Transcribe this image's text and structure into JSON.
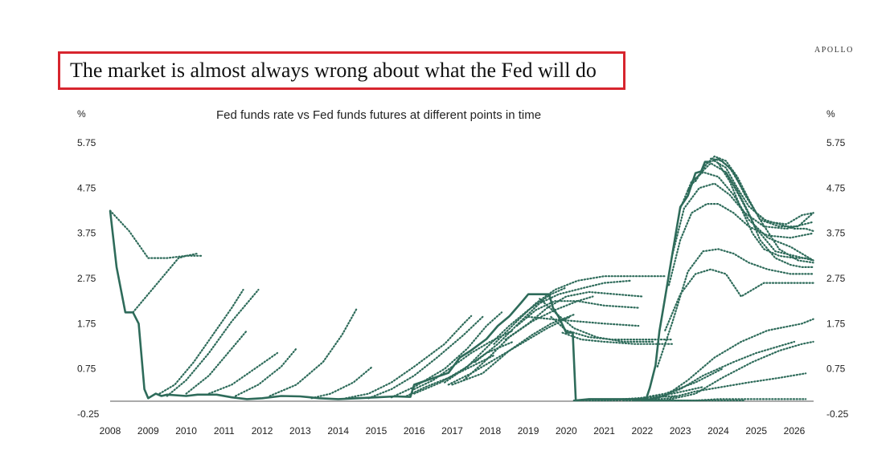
{
  "brand": "APOLLO",
  "headline": "The market is almost always wrong about what the Fed will do",
  "chart_data": {
    "type": "line",
    "title": "Fed funds rate vs Fed funds futures at different points in time",
    "ylabel_left": "%",
    "ylabel_right": "%",
    "ylim": [
      -0.25,
      5.75
    ],
    "yticks": [
      -0.25,
      0.75,
      1.75,
      2.75,
      3.75,
      4.75,
      5.75
    ],
    "ytick_labels": [
      "-0.25",
      "0.75",
      "1.75",
      "2.75",
      "3.75",
      "4.75",
      "5.75"
    ],
    "xlim": [
      2008,
      2026.5
    ],
    "xticks": [
      2008,
      2009,
      2010,
      2011,
      2012,
      2013,
      2014,
      2015,
      2016,
      2017,
      2018,
      2019,
      2020,
      2021,
      2022,
      2023,
      2024,
      2025,
      2026
    ],
    "xtick_labels": [
      "2008",
      "2009",
      "2010",
      "2011",
      "2012",
      "2013",
      "2014",
      "2015",
      "2016",
      "2017",
      "2018",
      "2019",
      "2020",
      "2021",
      "2022",
      "2023",
      "2024",
      "2025",
      "2026"
    ],
    "grid": false,
    "line_color": "#2e6b5a",
    "fed_funds_rate": {
      "x": [
        2008.0,
        2008.17,
        2008.4,
        2008.6,
        2008.75,
        2008.9,
        2009.0,
        2009.2,
        2009.35,
        2009.5,
        2010.0,
        2010.3,
        2010.8,
        2011.2,
        2011.6,
        2012.0,
        2012.5,
        2013.0,
        2013.5,
        2014.0,
        2014.5,
        2015.0,
        2015.5,
        2015.9,
        2016.0,
        2016.9,
        2017.2,
        2017.5,
        2017.9,
        2018.2,
        2018.5,
        2018.8,
        2019.0,
        2019.4,
        2019.55,
        2019.65,
        2019.8,
        2020.0,
        2020.17,
        2020.25,
        2020.6,
        2021.0,
        2021.5,
        2022.1,
        2022.2,
        2022.35,
        2022.45,
        2022.6,
        2022.75,
        2022.9,
        2023.0,
        2023.2,
        2023.4,
        2023.55,
        2023.65,
        2023.75
      ],
      "y": [
        4.25,
        3.0,
        2.0,
        2.0,
        1.75,
        0.3,
        0.1,
        0.2,
        0.15,
        0.18,
        0.15,
        0.18,
        0.18,
        0.12,
        0.08,
        0.1,
        0.15,
        0.14,
        0.1,
        0.08,
        0.1,
        0.12,
        0.14,
        0.13,
        0.4,
        0.66,
        1.0,
        1.16,
        1.41,
        1.7,
        1.91,
        2.2,
        2.4,
        2.4,
        2.4,
        2.1,
        1.9,
        1.55,
        1.55,
        0.05,
        0.08,
        0.08,
        0.08,
        0.08,
        0.33,
        0.83,
        1.58,
        2.33,
        3.08,
        3.83,
        4.33,
        4.58,
        5.08,
        5.12,
        5.33,
        5.33
      ]
    },
    "futures_series": [
      {
        "x": [
          2008.0,
          2008.5,
          2009.0,
          2009.5,
          2010.0,
          2010.4
        ],
        "y": [
          4.25,
          3.8,
          3.2,
          3.2,
          3.25,
          3.25
        ]
      },
      {
        "x": [
          2008.6,
          2009.0,
          2009.5,
          2009.8,
          2010.0,
          2010.3
        ],
        "y": [
          2.0,
          2.4,
          2.9,
          3.2,
          3.25,
          3.3
        ]
      },
      {
        "x": [
          2009.3,
          2009.7,
          2010.2,
          2010.7,
          2011.2,
          2011.5
        ],
        "y": [
          0.2,
          0.4,
          0.9,
          1.5,
          2.1,
          2.5
        ]
      },
      {
        "x": [
          2009.5,
          2010.0,
          2010.6,
          2011.2,
          2011.9
        ],
        "y": [
          0.15,
          0.5,
          1.1,
          1.8,
          2.5
        ]
      },
      {
        "x": [
          2010.0,
          2010.6,
          2011.2,
          2011.6
        ],
        "y": [
          0.2,
          0.6,
          1.2,
          1.6
        ]
      },
      {
        "x": [
          2010.6,
          2011.2,
          2011.8,
          2012.4
        ],
        "y": [
          0.2,
          0.4,
          0.75,
          1.1
        ]
      },
      {
        "x": [
          2011.3,
          2011.9,
          2012.5,
          2012.9
        ],
        "y": [
          0.15,
          0.4,
          0.8,
          1.2
        ]
      },
      {
        "x": [
          2012.2,
          2012.9,
          2013.6,
          2014.1,
          2014.5
        ],
        "y": [
          0.15,
          0.4,
          0.9,
          1.5,
          2.1
        ]
      },
      {
        "x": [
          2013.3,
          2013.8,
          2014.4,
          2014.9
        ],
        "y": [
          0.1,
          0.2,
          0.45,
          0.8
        ]
      },
      {
        "x": [
          2014.2,
          2014.8,
          2015.4,
          2016.0,
          2016.8,
          2017.3,
          2017.5
        ],
        "y": [
          0.1,
          0.2,
          0.45,
          0.8,
          1.3,
          1.75,
          1.92
        ]
      },
      {
        "x": [
          2014.8,
          2015.4,
          2016.0,
          2016.6,
          2017.3,
          2017.8
        ],
        "y": [
          0.1,
          0.3,
          0.6,
          1.0,
          1.5,
          1.9
        ]
      },
      {
        "x": [
          2015.4,
          2016.0,
          2016.8,
          2017.4,
          2017.9,
          2018.3
        ],
        "y": [
          0.12,
          0.35,
          0.75,
          1.2,
          1.7,
          2.0
        ]
      },
      {
        "x": [
          2015.8,
          2016.3,
          2016.9,
          2017.5,
          2018.1
        ],
        "y": [
          0.15,
          0.35,
          0.55,
          0.8,
          1.05
        ]
      },
      {
        "x": [
          2016.0,
          2016.5,
          2017.0,
          2017.5,
          2018.0,
          2018.6
        ],
        "y": [
          0.3,
          0.5,
          0.8,
          1.1,
          1.35,
          1.6
        ]
      },
      {
        "x": [
          2016.0,
          2016.7,
          2017.3,
          2017.9,
          2018.6
        ],
        "y": [
          0.2,
          0.45,
          0.75,
          1.1,
          1.35
        ]
      },
      {
        "x": [
          2016.8,
          2017.4,
          2018.0,
          2018.5,
          2019.0,
          2019.6,
          2020.0
        ],
        "y": [
          0.45,
          0.8,
          1.3,
          1.7,
          2.05,
          2.4,
          2.55
        ]
      },
      {
        "x": [
          2016.9,
          2017.5,
          2018.2,
          2018.9,
          2019.5,
          2020.1
        ],
        "y": [
          0.4,
          0.65,
          1.0,
          1.35,
          1.65,
          1.9
        ]
      },
      {
        "x": [
          2017.0,
          2017.8,
          2018.5,
          2019.1,
          2019.6,
          2020.2
        ],
        "y": [
          0.4,
          0.65,
          1.15,
          1.5,
          1.75,
          1.95
        ]
      },
      {
        "x": [
          2017.3,
          2017.9,
          2018.5,
          2019.1,
          2019.7,
          2020.3,
          2020.7
        ],
        "y": [
          0.5,
          0.95,
          1.45,
          1.8,
          2.05,
          2.25,
          2.35
        ]
      },
      {
        "x": [
          2017.6,
          2018.2,
          2018.8,
          2019.3,
          2019.8,
          2020.5,
          2021.0,
          2021.7
        ],
        "y": [
          0.9,
          1.3,
          1.8,
          2.2,
          2.4,
          2.55,
          2.65,
          2.7
        ]
      },
      {
        "x": [
          2018.1,
          2018.7,
          2019.2,
          2019.7,
          2020.3,
          2021.0,
          2021.8,
          2022.6
        ],
        "y": [
          1.3,
          1.8,
          2.2,
          2.5,
          2.7,
          2.8,
          2.8,
          2.8
        ]
      },
      {
        "x": [
          2018.4,
          2019.0,
          2019.5,
          2020.0,
          2020.6,
          2021.3,
          2022.0
        ],
        "y": [
          1.4,
          1.75,
          2.1,
          2.35,
          2.45,
          2.4,
          2.35
        ]
      },
      {
        "x": [
          2018.7,
          2019.2,
          2019.7,
          2020.3,
          2021.0,
          2021.9
        ],
        "y": [
          1.7,
          2.05,
          2.25,
          2.25,
          2.15,
          2.1
        ]
      },
      {
        "x": [
          2019.0,
          2019.6,
          2020.3,
          2021.0,
          2021.9
        ],
        "y": [
          1.9,
          1.85,
          1.8,
          1.75,
          1.7
        ]
      },
      {
        "x": [
          2019.3,
          2019.7,
          2020.2,
          2020.8,
          2021.5,
          2022.3
        ],
        "y": [
          2.3,
          2.0,
          1.65,
          1.45,
          1.35,
          1.35
        ]
      },
      {
        "x": [
          2019.6,
          2020.0,
          2020.6,
          2021.2,
          2021.9,
          2022.8
        ],
        "y": [
          1.9,
          1.6,
          1.45,
          1.4,
          1.4,
          1.4
        ]
      },
      {
        "x": [
          2019.9,
          2020.4,
          2021.0,
          2021.8,
          2022.8
        ],
        "y": [
          1.55,
          1.4,
          1.35,
          1.3,
          1.3
        ]
      },
      {
        "x": [
          2020.2,
          2020.8,
          2021.5,
          2022.2,
          2022.9
        ],
        "y": [
          0.05,
          0.05,
          0.08,
          0.12,
          0.15
        ]
      },
      {
        "x": [
          2020.6,
          2021.3,
          2022.0,
          2022.8,
          2023.6
        ],
        "y": [
          0.05,
          0.05,
          0.1,
          0.2,
          0.35
        ]
      },
      {
        "x": [
          2021.0,
          2021.8,
          2022.6,
          2023.4,
          2024.1
        ],
        "y": [
          0.05,
          0.08,
          0.2,
          0.45,
          0.75
        ]
      },
      {
        "x": [
          2021.5,
          2022.3,
          2023.1,
          2023.9,
          2024.7
        ],
        "y": [
          0.05,
          0.05,
          0.05,
          0.05,
          0.05
        ]
      },
      {
        "x": [
          2021.8,
          2022.4,
          2023.0,
          2023.6,
          2024.4,
          2025.0,
          2025.8,
          2026.0
        ],
        "y": [
          0.05,
          0.1,
          0.3,
          0.6,
          0.9,
          1.1,
          1.3,
          1.35
        ]
      },
      {
        "x": [
          2022.0,
          2022.6,
          2023.2,
          2023.9,
          2024.6,
          2025.3,
          2026.2,
          2026.5
        ],
        "y": [
          0.05,
          0.15,
          0.5,
          1.0,
          1.35,
          1.6,
          1.75,
          1.85
        ]
      },
      {
        "x": [
          2022.0,
          2022.6,
          2023.4,
          2024.1,
          2024.9,
          2025.6,
          2026.2,
          2026.5
        ],
        "y": [
          0.05,
          0.05,
          0.2,
          0.55,
          0.9,
          1.15,
          1.3,
          1.35
        ]
      },
      {
        "x": [
          2022.1,
          2022.7,
          2023.4,
          2024.1,
          2024.8,
          2025.6,
          2026.3
        ],
        "y": [
          0.05,
          0.1,
          0.25,
          0.35,
          0.45,
          0.55,
          0.65
        ]
      },
      {
        "x": [
          2022.2,
          2022.8,
          2023.4,
          2024.0,
          2024.6,
          2025.3,
          2026.3
        ],
        "y": [
          0.05,
          0.05,
          0.05,
          0.08,
          0.08,
          0.08,
          0.08
        ]
      },
      {
        "x": [
          2022.4,
          2022.8,
          2023.2,
          2023.6,
          2024.0,
          2024.4,
          2024.8,
          2025.3,
          2025.9,
          2026.5
        ],
        "y": [
          0.8,
          1.8,
          2.9,
          3.35,
          3.4,
          3.3,
          3.1,
          2.95,
          2.85,
          2.85
        ]
      },
      {
        "x": [
          2022.6,
          2023.0,
          2023.4,
          2023.8,
          2024.2,
          2024.6,
          2025.2,
          2025.8,
          2026.5
        ],
        "y": [
          1.6,
          2.4,
          2.85,
          2.95,
          2.85,
          2.35,
          2.65,
          2.65,
          2.65
        ]
      },
      {
        "x": [
          2022.7,
          2023.0,
          2023.3,
          2023.7,
          2024.0,
          2024.4,
          2024.8,
          2025.3,
          2025.9,
          2026.5
        ],
        "y": [
          2.6,
          3.6,
          4.2,
          4.4,
          4.4,
          4.2,
          3.9,
          3.7,
          3.65,
          3.75
        ]
      },
      {
        "x": [
          2022.8,
          2023.1,
          2023.5,
          2023.9,
          2024.3,
          2024.7,
          2025.2,
          2025.8,
          2026.5
        ],
        "y": [
          3.3,
          4.3,
          4.75,
          4.85,
          4.6,
          4.2,
          3.9,
          3.85,
          4.0
        ]
      },
      {
        "x": [
          2023.0,
          2023.3,
          2023.6,
          2024.0,
          2024.4,
          2024.8,
          2025.3,
          2025.9,
          2026.5
        ],
        "y": [
          4.3,
          4.9,
          5.1,
          5.0,
          4.6,
          4.05,
          3.65,
          3.45,
          3.15
        ]
      },
      {
        "x": [
          2023.2,
          2023.5,
          2023.8,
          2024.2,
          2024.6,
          2025.0,
          2025.5,
          2026.0,
          2026.5
        ],
        "y": [
          4.7,
          5.05,
          5.3,
          5.1,
          4.5,
          3.85,
          3.35,
          3.25,
          3.15
        ]
      },
      {
        "x": [
          2023.4,
          2023.7,
          2024.0,
          2024.3,
          2024.7,
          2025.1,
          2025.6,
          2026.1,
          2026.5
        ],
        "y": [
          4.9,
          5.3,
          5.4,
          5.2,
          4.65,
          4.05,
          3.4,
          3.15,
          3.1
        ]
      },
      {
        "x": [
          2023.6,
          2023.9,
          2024.2,
          2024.5,
          2024.8,
          2025.1,
          2025.6,
          2026.1,
          2026.5
        ],
        "y": [
          5.2,
          5.45,
          5.35,
          5.0,
          4.5,
          4.05,
          3.9,
          3.9,
          4.2
        ]
      },
      {
        "x": [
          2023.8,
          2024.1,
          2024.4,
          2024.7,
          2025.0,
          2025.3,
          2025.8,
          2026.2,
          2026.5
        ],
        "y": [
          5.4,
          5.35,
          5.1,
          4.6,
          4.2,
          4.0,
          3.95,
          4.15,
          4.2
        ]
      },
      {
        "x": [
          2023.9,
          2024.2,
          2024.5,
          2024.8,
          2025.2,
          2025.6,
          2026.0,
          2026.3,
          2026.5
        ],
        "y": [
          5.35,
          5.2,
          4.75,
          4.35,
          4.05,
          3.95,
          3.85,
          3.85,
          3.8
        ]
      },
      {
        "x": [
          2024.0,
          2024.3,
          2024.6,
          2024.9,
          2025.2,
          2025.6,
          2026.0,
          2026.3,
          2026.5
        ],
        "y": [
          5.3,
          4.9,
          4.3,
          3.75,
          3.4,
          3.25,
          3.2,
          3.2,
          3.15
        ]
      },
      {
        "x": [
          2024.2,
          2024.5,
          2024.8,
          2025.1,
          2025.5,
          2025.9,
          2026.2,
          2026.5
        ],
        "y": [
          5.1,
          4.7,
          4.2,
          3.6,
          3.2,
          3.05,
          3.0,
          3.0
        ]
      }
    ]
  }
}
